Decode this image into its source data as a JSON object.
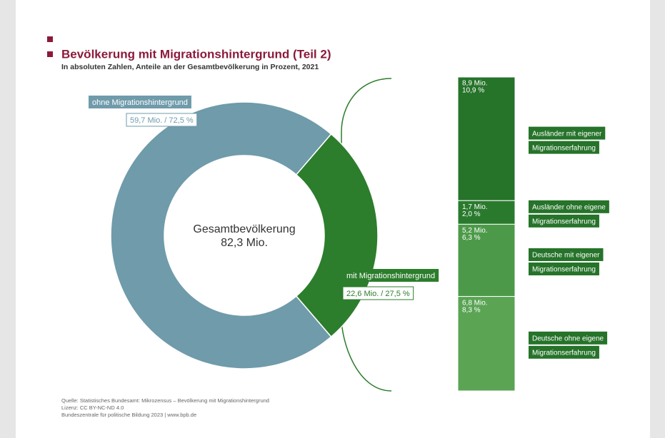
{
  "header": {
    "title": "Bevölkerung mit Migrationshintergrund (Teil 2)",
    "subtitle": "In absoluten Zahlen, Anteile an der Gesamtbevölkerung in Prozent, 2021"
  },
  "chart_data": [
    {
      "type": "pie",
      "donut": true,
      "categories": [
        "ohne Migrationshintergrund",
        "mit Migrationshintergrund"
      ],
      "values": [
        59.7,
        22.6
      ],
      "value_labels": [
        "59,7 Mio. / 72,5 %",
        "22,6 Mio. / 27,5 %"
      ],
      "colors": [
        "#6f9bab",
        "#2c7d2c"
      ],
      "center_text": [
        "Gesamtbevölkerung",
        "82,3 Mio."
      ]
    },
    {
      "type": "bar",
      "stacked": true,
      "series": [
        {
          "name": [
            "Ausländer mit eigener",
            "Migrationserfahrung"
          ],
          "color": "#26732a",
          "values": [
            8.9
          ],
          "value_labels": [
            "8,9 Mio."
          ],
          "share_labels": [
            "10,9 %"
          ]
        },
        {
          "name": [
            "Ausländer ohne eigene",
            "Migrationserfahrung"
          ],
          "color": "#2a7a2e",
          "values": [
            1.7
          ],
          "value_labels": [
            "1,7 Mio."
          ],
          "share_labels": [
            "2,0 %"
          ]
        },
        {
          "name": [
            "Deutsche mit eigener",
            "Migrationserfahrung"
          ],
          "color": "#4c9a49",
          "values": [
            5.2
          ],
          "value_labels": [
            "5,2 Mio."
          ],
          "share_labels": [
            "6,3 %"
          ]
        },
        {
          "name": [
            "Deutsche ohne eigene",
            "Migrationserfahrung"
          ],
          "color": "#5aa454",
          "values": [
            6.8
          ],
          "value_labels": [
            "6,8 Mio."
          ],
          "share_labels": [
            "8,3 %"
          ]
        }
      ]
    }
  ],
  "footer": [
    "Quelle: Statistisches Bundesamt: Mikrozensus – Bevölkerung mit Migrationshintergrund",
    "Lizenz: CC BY-NC-ND 4.0",
    "Bundeszentrale für politische Bildung 2023 | www.bpb.de"
  ]
}
